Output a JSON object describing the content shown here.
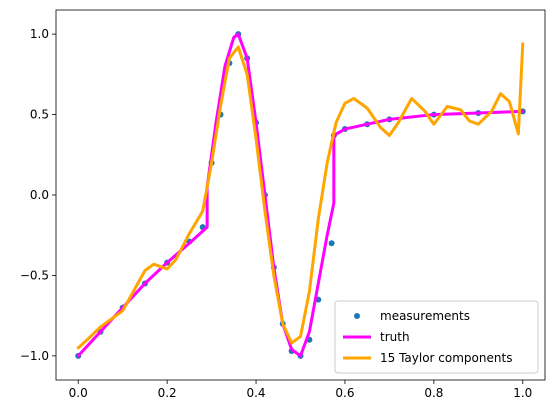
{
  "chart_data": {
    "type": "line",
    "title": "",
    "xlabel": "",
    "ylabel": "",
    "xlim": [
      -0.05,
      1.05
    ],
    "ylim": [
      -1.15,
      1.15
    ],
    "xticks": [
      0.0,
      0.2,
      0.4,
      0.6,
      0.8,
      1.0
    ],
    "xtick_labels": [
      "0.0",
      "0.2",
      "0.4",
      "0.6",
      "0.8",
      "1.0"
    ],
    "yticks": [
      -1.0,
      -0.5,
      0.0,
      0.5,
      1.0
    ],
    "ytick_labels": [
      "−1.0",
      "−0.5",
      "0.0",
      "0.5",
      "1.0"
    ],
    "grid": false,
    "legend_position": "lower-right",
    "series": [
      {
        "name": "measurements",
        "kind": "scatter",
        "color": "#1f77b4",
        "x": [
          0.0,
          0.05,
          0.1,
          0.15,
          0.2,
          0.25,
          0.28,
          0.3,
          0.32,
          0.34,
          0.36,
          0.38,
          0.4,
          0.42,
          0.44,
          0.46,
          0.48,
          0.5,
          0.52,
          0.54,
          0.57,
          0.575,
          0.6,
          0.65,
          0.7,
          0.8,
          0.9,
          1.0
        ],
        "y": [
          -1.0,
          -0.85,
          -0.7,
          -0.55,
          -0.42,
          -0.29,
          -0.2,
          0.2,
          0.5,
          0.82,
          1.0,
          0.85,
          0.45,
          0.0,
          -0.45,
          -0.8,
          -0.97,
          -1.0,
          -0.9,
          -0.65,
          -0.3,
          0.37,
          0.41,
          0.44,
          0.47,
          0.5,
          0.51,
          0.52
        ]
      },
      {
        "name": "truth",
        "kind": "line",
        "color": "#ff00ff",
        "x": [
          0.0,
          0.05,
          0.1,
          0.15,
          0.2,
          0.25,
          0.29,
          0.29,
          0.31,
          0.33,
          0.35,
          0.36,
          0.38,
          0.4,
          0.42,
          0.44,
          0.46,
          0.48,
          0.5,
          0.52,
          0.54,
          0.56,
          0.575,
          0.575,
          0.6,
          0.65,
          0.7,
          0.8,
          0.9,
          1.0
        ],
        "y": [
          -1.0,
          -0.85,
          -0.7,
          -0.55,
          -0.42,
          -0.3,
          -0.2,
          0.05,
          0.45,
          0.8,
          0.98,
          1.0,
          0.85,
          0.45,
          0.0,
          -0.45,
          -0.8,
          -0.96,
          -1.0,
          -0.85,
          -0.55,
          -0.25,
          -0.05,
          0.37,
          0.41,
          0.44,
          0.47,
          0.5,
          0.51,
          0.52
        ]
      },
      {
        "name": "15 Taylor components",
        "kind": "line",
        "color": "#ffa500",
        "x": [
          0.0,
          0.02,
          0.05,
          0.1,
          0.15,
          0.17,
          0.2,
          0.22,
          0.25,
          0.28,
          0.3,
          0.32,
          0.34,
          0.36,
          0.38,
          0.4,
          0.42,
          0.44,
          0.46,
          0.48,
          0.5,
          0.52,
          0.54,
          0.56,
          0.58,
          0.6,
          0.62,
          0.65,
          0.68,
          0.7,
          0.72,
          0.75,
          0.78,
          0.8,
          0.83,
          0.86,
          0.88,
          0.9,
          0.93,
          0.95,
          0.97,
          0.99,
          1.0
        ],
        "y": [
          -0.95,
          -0.9,
          -0.82,
          -0.72,
          -0.47,
          -0.43,
          -0.46,
          -0.4,
          -0.24,
          -0.1,
          0.2,
          0.55,
          0.85,
          0.92,
          0.75,
          0.35,
          -0.1,
          -0.5,
          -0.8,
          -0.92,
          -0.88,
          -0.6,
          -0.15,
          0.2,
          0.45,
          0.57,
          0.6,
          0.54,
          0.42,
          0.37,
          0.45,
          0.6,
          0.52,
          0.44,
          0.55,
          0.53,
          0.46,
          0.44,
          0.52,
          0.63,
          0.58,
          0.38,
          0.94
        ]
      }
    ]
  }
}
